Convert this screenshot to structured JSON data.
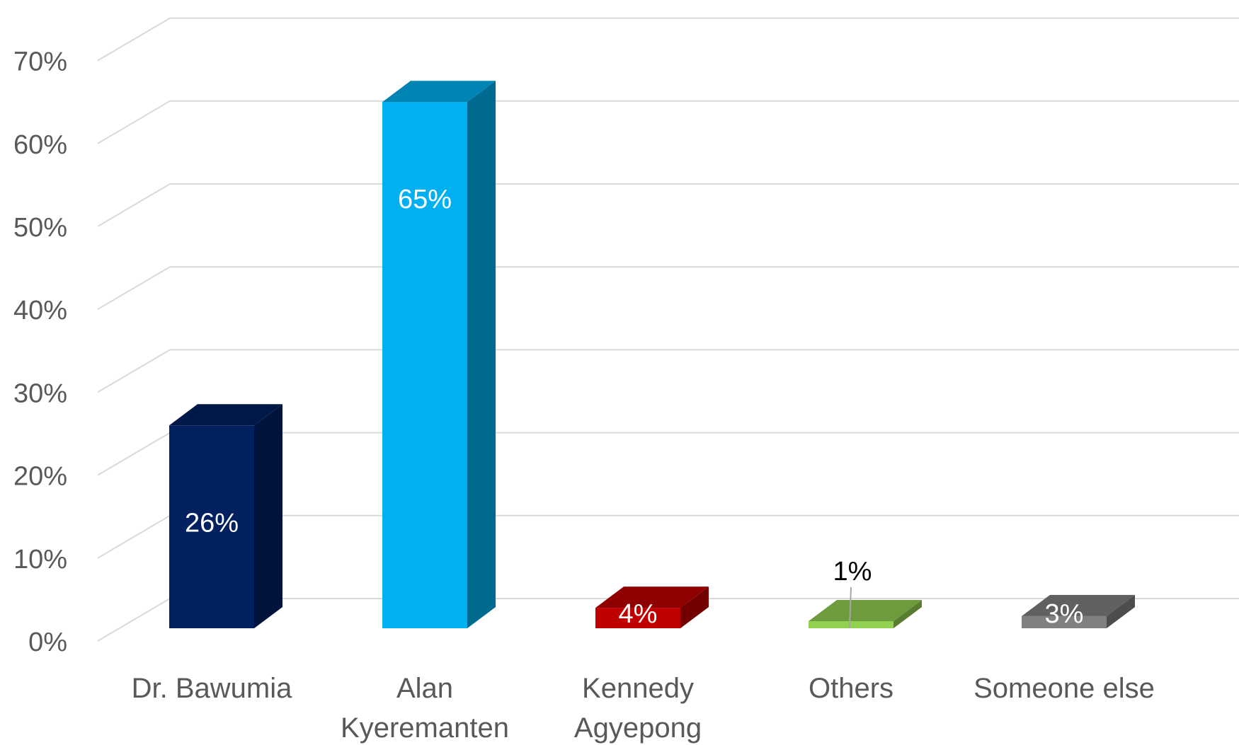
{
  "chart_data": {
    "type": "bar",
    "categories": [
      "Dr. Bawumia",
      "Alan Kyeremanten",
      "Kennedy Agyepong",
      "Others",
      "Someone else"
    ],
    "values": [
      26,
      65,
      4,
      1,
      3
    ],
    "data_labels": [
      "26%",
      "65%",
      "4%",
      "1%",
      "3%"
    ],
    "y_ticks": [
      "0%",
      "10%",
      "20%",
      "30%",
      "40%",
      "50%",
      "60%",
      "70%"
    ],
    "ylim": [
      0,
      70
    ],
    "value_unit": "%",
    "grid": true,
    "legend": "none",
    "three_d": true,
    "colors": {
      "Dr. Bawumia": "#002060",
      "Alan Kyeremanten": "#00b0f0",
      "Kennedy Agyepong": "#c00000",
      "Others": "#92d050",
      "Someone else": "#808080"
    }
  }
}
